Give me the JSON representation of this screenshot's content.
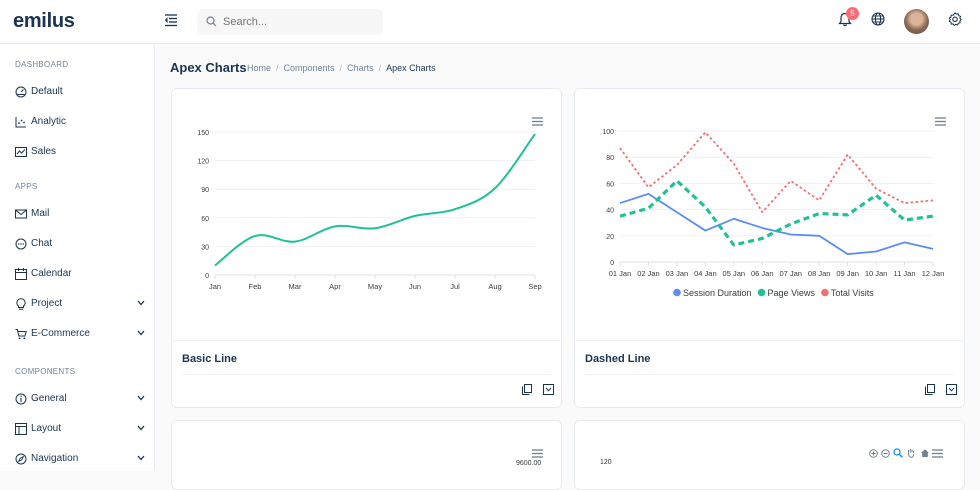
{
  "app": {
    "logo": "emilus"
  },
  "header": {
    "search_placeholder": "Search...",
    "notification_count": "5"
  },
  "sidebar": {
    "sections": [
      {
        "title": "DASHBOARD"
      },
      {
        "title": "APPS"
      },
      {
        "title": "COMPONENTS"
      }
    ],
    "items": [
      {
        "label": "Default"
      },
      {
        "label": "Analytic"
      },
      {
        "label": "Sales"
      },
      {
        "label": "Mail"
      },
      {
        "label": "Chat"
      },
      {
        "label": "Calendar"
      },
      {
        "label": "Project"
      },
      {
        "label": "E-Commerce"
      },
      {
        "label": "General"
      },
      {
        "label": "Layout"
      },
      {
        "label": "Navigation"
      }
    ]
  },
  "page": {
    "title": "Apex Charts",
    "breadcrumb": [
      "Home",
      "Components",
      "Charts",
      "Apex Charts"
    ]
  },
  "cards": [
    {
      "title": "Basic Line"
    },
    {
      "title": "Dashed Line"
    }
  ],
  "lower_cards": [
    {
      "top_label": "9600.00"
    },
    {
      "top_label": "120"
    }
  ],
  "colors": {
    "green": "#21c197",
    "blue": "#5b8def",
    "red": "#f66e6e",
    "accent": "#3e79f7"
  },
  "chart_data": [
    {
      "type": "line",
      "title": "Basic Line",
      "categories": [
        "Jan",
        "Feb",
        "Mar",
        "Apr",
        "May",
        "Jun",
        "Jul",
        "Aug",
        "Sep"
      ],
      "y_ticks": [
        "150",
        "120",
        "90",
        "60",
        "30",
        "0"
      ],
      "ylim": [
        0,
        150
      ],
      "series": [
        {
          "values": [
            10,
            41,
            35,
            51,
            49,
            62,
            69,
            91,
            148
          ]
        }
      ],
      "grid": true
    },
    {
      "type": "line",
      "title": "Dashed Line",
      "categories": [
        "01 Jan",
        "02 Jan",
        "03 Jan",
        "04 Jan",
        "05 Jan",
        "06 Jan",
        "07 Jan",
        "08 Jan",
        "09 Jan",
        "10 Jan",
        "11 Jan",
        "12 Jan"
      ],
      "y_ticks": [
        "100",
        "80",
        "60",
        "40",
        "20",
        "0"
      ],
      "ylim": [
        0,
        100
      ],
      "series": [
        {
          "name": "Session Duration",
          "values": [
            45,
            52,
            38,
            24,
            33,
            26,
            21,
            20,
            6,
            8,
            15,
            10
          ]
        },
        {
          "name": "Page Views",
          "values": [
            35,
            41,
            62,
            42,
            13,
            18,
            29,
            37,
            36,
            51,
            32,
            35
          ]
        },
        {
          "name": "Total Visits",
          "values": [
            87,
            57,
            74,
            99,
            75,
            38,
            62,
            47,
            82,
            56,
            45,
            47
          ]
        }
      ],
      "legend": "bottom",
      "grid": true
    }
  ]
}
